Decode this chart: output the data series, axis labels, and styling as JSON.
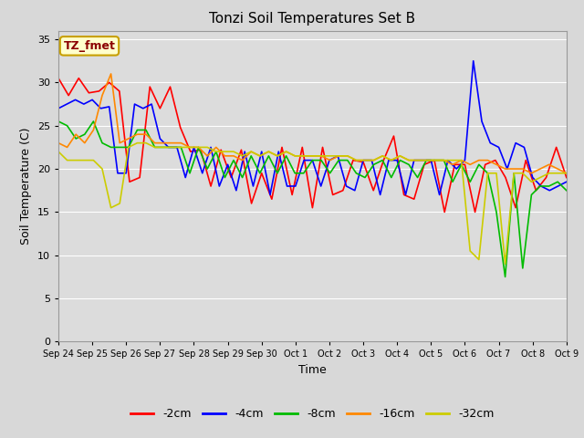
{
  "title": "Tonzi Soil Temperatures Set B",
  "xlabel": "Time",
  "ylabel": "Soil Temperature (C)",
  "ylim": [
    0,
    36
  ],
  "yticks": [
    0,
    5,
    10,
    15,
    20,
    25,
    30,
    35
  ],
  "fig_bg_color": "#d8d8d8",
  "plot_bg_color": "#dcdcdc",
  "annotation_label": "TZ_fmet",
  "annotation_color": "#8b0000",
  "annotation_bg": "#ffffcc",
  "annotation_border": "#c8a000",
  "series": {
    "-2cm": {
      "color": "#ff0000",
      "data": [
        30.5,
        28.5,
        30.5,
        28.8,
        29.0,
        30.0,
        29.0,
        18.5,
        19.0,
        29.5,
        27.0,
        29.5,
        24.8,
        22.0,
        22.2,
        18.0,
        22.2,
        19.0,
        22.2,
        16.0,
        19.5,
        16.5,
        22.5,
        17.0,
        22.5,
        15.5,
        22.5,
        17.0,
        17.5,
        21.0,
        20.8,
        17.5,
        21.0,
        23.8,
        17.0,
        16.5,
        20.5,
        21.0,
        15.0,
        20.5,
        20.5,
        15.0,
        20.5,
        21.0,
        19.0,
        15.5,
        21.0,
        17.5,
        19.0,
        22.5,
        19.0
      ]
    },
    "-4cm": {
      "color": "#0000ff",
      "data": [
        27.0,
        27.5,
        28.0,
        27.5,
        28.0,
        27.0,
        27.2,
        19.5,
        19.5,
        27.5,
        27.0,
        27.5,
        23.5,
        22.5,
        22.5,
        19.0,
        22.5,
        19.5,
        22.5,
        18.0,
        20.5,
        17.5,
        22.0,
        18.0,
        22.0,
        17.0,
        22.0,
        18.0,
        18.0,
        21.0,
        21.0,
        18.0,
        21.0,
        21.5,
        18.0,
        17.5,
        21.0,
        21.0,
        17.0,
        21.0,
        21.0,
        17.0,
        21.0,
        21.0,
        21.0,
        17.0,
        21.0,
        20.0,
        21.0,
        32.5,
        25.5,
        23.0,
        22.5,
        20.0,
        23.0,
        22.5,
        19.0,
        18.0,
        17.5,
        18.0,
        18.5
      ]
    },
    "-8cm": {
      "color": "#00bb00",
      "data": [
        25.5,
        25.0,
        23.5,
        24.0,
        25.5,
        23.0,
        22.5,
        22.5,
        22.5,
        24.5,
        24.5,
        22.5,
        22.5,
        22.5,
        22.5,
        19.5,
        22.5,
        20.0,
        22.0,
        19.0,
        21.0,
        19.0,
        21.5,
        19.5,
        21.5,
        19.5,
        21.5,
        19.5,
        19.5,
        21.0,
        21.0,
        19.5,
        21.0,
        21.0,
        19.5,
        19.0,
        20.5,
        21.0,
        19.0,
        21.0,
        20.5,
        19.0,
        21.0,
        21.0,
        21.0,
        18.5,
        20.5,
        18.5,
        20.5,
        19.5,
        15.0,
        7.5,
        19.5,
        8.5,
        17.0,
        18.0,
        18.0,
        18.5,
        17.5
      ]
    },
    "-16cm": {
      "color": "#ff8800",
      "data": [
        23.0,
        22.5,
        24.0,
        23.0,
        24.5,
        28.5,
        31.0,
        23.0,
        23.5,
        24.0,
        24.0,
        23.0,
        23.0,
        23.0,
        23.0,
        22.5,
        22.5,
        21.5,
        22.5,
        21.5,
        21.5,
        21.0,
        22.0,
        21.5,
        22.0,
        21.5,
        22.0,
        21.5,
        21.5,
        21.5,
        21.5,
        21.0,
        21.5,
        21.5,
        21.0,
        21.0,
        21.0,
        21.5,
        21.0,
        21.5,
        21.0,
        21.0,
        21.0,
        21.0,
        21.0,
        20.5,
        21.0,
        20.5,
        21.0,
        21.0,
        20.5,
        20.0,
        20.0,
        20.0,
        19.5,
        20.0,
        20.5,
        20.0,
        19.5
      ]
    },
    "-32cm": {
      "color": "#cccc00",
      "data": [
        22.0,
        21.0,
        21.0,
        21.0,
        21.0,
        20.0,
        15.5,
        16.0,
        22.5,
        23.0,
        23.0,
        22.5,
        22.5,
        22.5,
        22.5,
        22.5,
        22.5,
        22.5,
        22.0,
        22.0,
        22.0,
        21.5,
        22.0,
        21.5,
        22.0,
        21.5,
        22.0,
        21.5,
        21.5,
        21.5,
        21.5,
        21.5,
        21.5,
        21.5,
        21.0,
        21.0,
        21.0,
        21.5,
        21.0,
        21.5,
        21.0,
        21.0,
        21.0,
        21.0,
        21.0,
        21.0,
        21.0,
        10.5,
        9.5,
        19.5,
        19.5,
        9.0,
        19.5,
        19.5,
        18.5,
        19.0,
        19.5,
        19.5,
        19.5
      ]
    }
  },
  "xtick_labels": [
    "Sep 24",
    "Sep 25",
    "Sep 26",
    "Sep 27",
    "Sep 28",
    "Sep 29",
    "Sep 30",
    "Oct 1",
    "Oct 2",
    "Oct 3",
    "Oct 4",
    "Oct 5",
    "Oct 6",
    "Oct 7",
    "Oct 8",
    "Oct 9"
  ],
  "legend_entries": [
    "-2cm",
    "-4cm",
    "-8cm",
    "-16cm",
    "-32cm"
  ],
  "legend_colors": [
    "#ff0000",
    "#0000ff",
    "#00bb00",
    "#ff8800",
    "#cccc00"
  ]
}
